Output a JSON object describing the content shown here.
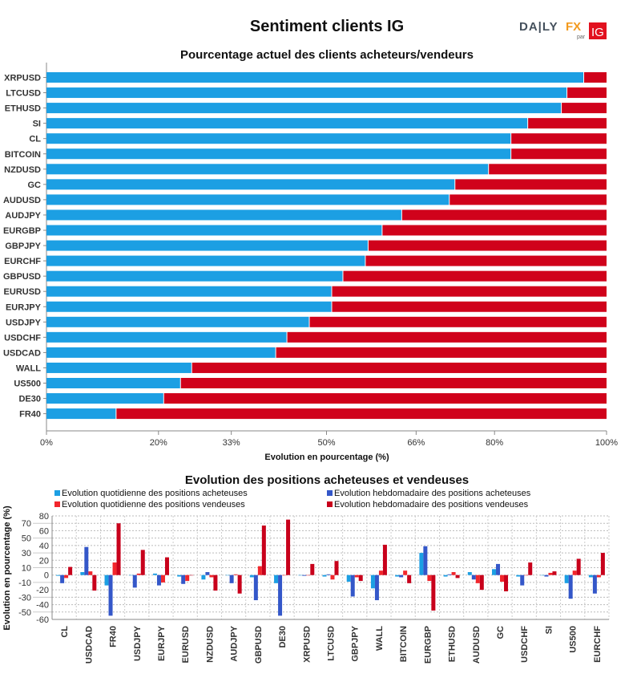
{
  "title": "Sentiment clients IG",
  "logo": {
    "text": "DAILYFX",
    "sub": "par",
    "badge": "IG"
  },
  "colors": {
    "buy": "#1c9fe3",
    "sell": "#d0021b",
    "daily_buy": "#1c9fe3",
    "weekly_buy": "#3457c9",
    "daily_sell": "#f2262c",
    "weekly_sell": "#c8001b"
  },
  "chart_data": [
    {
      "type": "bar",
      "orientation": "horizontal-stacked",
      "title": "Pourcentage actuel des clients acheteurs/vendeurs",
      "xlabel": "Evolution en pourcentage (%)",
      "xticks": [
        "0%",
        "20%",
        "33%",
        "50%",
        "66%",
        "80%",
        "100%"
      ],
      "xtick_values": [
        0,
        20,
        33,
        50,
        66,
        80,
        100
      ],
      "xlim": [
        0,
        100
      ],
      "categories": [
        "XRPUSD",
        "LTCUSD",
        "ETHUSD",
        "SI",
        "CL",
        "BITCOIN",
        "NZDUSD",
        "GC",
        "AUDUSD",
        "AUDJPY",
        "EURGBP",
        "GBPJPY",
        "EURCHF",
        "GBPUSD",
        "EURUSD",
        "EURJPY",
        "USDJPY",
        "USDCHF",
        "USDCAD",
        "WALL",
        "US500",
        "DE30",
        "FR40"
      ],
      "buy_pct": [
        96,
        93,
        92,
        86,
        83,
        83,
        79,
        73,
        72,
        63.5,
        60,
        57.5,
        57,
        53,
        51,
        51,
        47,
        43,
        41,
        26,
        24,
        21,
        12.5
      ]
    },
    {
      "type": "bar",
      "title": "Evolution des positions acheteuses et vendeuses",
      "ylabel": "Evolution en pourcentage (%)",
      "ylim": [
        -60,
        80
      ],
      "yticks": [
        80,
        70,
        60,
        50,
        40,
        30,
        20,
        10,
        0,
        -10,
        -20,
        -30,
        -40,
        -50,
        -60
      ],
      "grid": true,
      "legend": "top",
      "categories": [
        "CL",
        "USDCAD",
        "FR40",
        "USDJPY",
        "EURJPY",
        "EURUSD",
        "NZDUSD",
        "AUDJPY",
        "GBPUSD",
        "DE30",
        "XRPUSD",
        "LTCUSD",
        "GBPJPY",
        "WALL",
        "BITCOIN",
        "EURGBP",
        "ETHUSD",
        "AUDUSD",
        "GC",
        "USDCHF",
        "SI",
        "US500",
        "EURCHF"
      ],
      "series": [
        {
          "name": "Evolution quotidienne des positions acheteuses",
          "values": [
            -1,
            4,
            -14,
            0,
            2,
            -2,
            -6,
            0,
            -3,
            -11,
            0,
            -2,
            -9,
            -18,
            -2,
            30,
            -2,
            4,
            8,
            -2,
            0,
            -11,
            -3
          ]
        },
        {
          "name": "Evolution hebdomadaire des positions acheteuses",
          "values": [
            -11,
            38,
            -55,
            -17,
            -14,
            -12,
            4,
            -11,
            -34,
            -55,
            -1,
            1,
            -29,
            -34,
            -3,
            39,
            1,
            -6,
            15,
            -14,
            -2,
            -32,
            -25
          ]
        },
        {
          "name": "Evolution quotidienne des positions vendeuses",
          "values": [
            -4,
            5,
            17,
            2,
            -10,
            -8,
            -3,
            1,
            12,
            0,
            0,
            -6,
            -3,
            6,
            6,
            -8,
            4,
            -11,
            -9,
            0,
            3,
            6,
            -3
          ]
        },
        {
          "name": "Evolution hebdomadaire des positions vendeuses",
          "values": [
            11,
            -21,
            70,
            34,
            24,
            0,
            -21,
            -25,
            67,
            75,
            15,
            19,
            -8,
            41,
            -11,
            -48,
            -4,
            -20,
            -22,
            17,
            5,
            22,
            30
          ]
        }
      ]
    }
  ]
}
